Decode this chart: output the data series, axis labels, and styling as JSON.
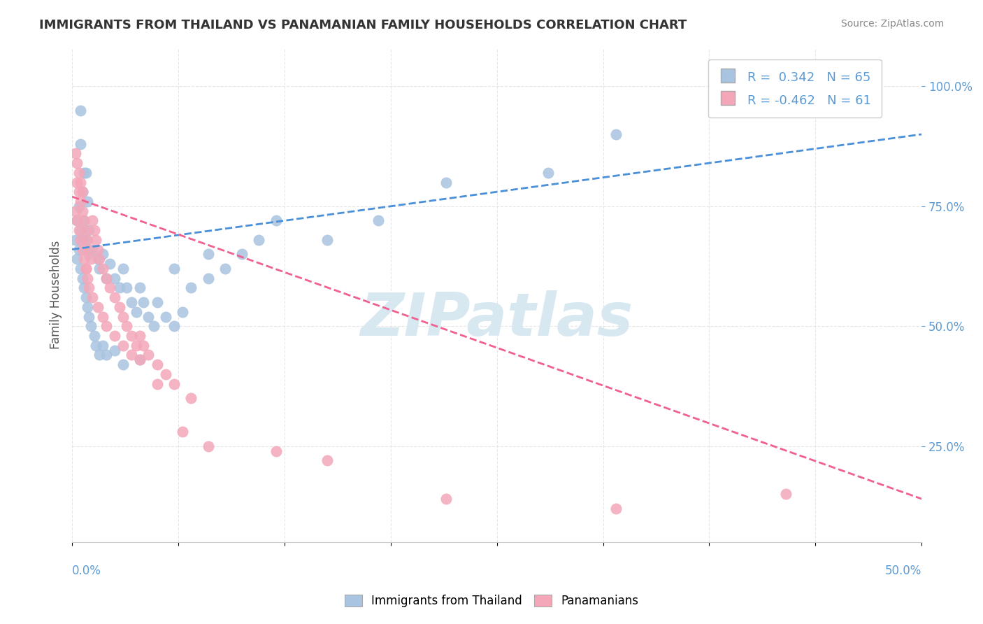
{
  "title": "IMMIGRANTS FROM THAILAND VS PANAMANIAN FAMILY HOUSEHOLDS CORRELATION CHART",
  "source_text": "Source: ZipAtlas.com",
  "ylabel": "Family Households",
  "y_ticks": [
    0.25,
    0.5,
    0.75,
    1.0
  ],
  "y_tick_labels": [
    "25.0%",
    "50.0%",
    "75.0%",
    "100.0%"
  ],
  "x_lim": [
    0.0,
    0.5
  ],
  "y_lim": [
    0.05,
    1.08
  ],
  "legend_r1": "R =  0.342   N = 65",
  "legend_r2": "R = -0.462   N = 61",
  "blue_color": "#a8c4e0",
  "pink_color": "#f4a7b9",
  "blue_line_color": "#4a90d9",
  "pink_line_color": "#f06090",
  "grid_color": "#e0e0e0",
  "title_color": "#333333",
  "axis_label_color": "#5b9bd5",
  "watermark_color": "#d8e8f0",
  "background_color": "#ffffff",
  "blue_scatter_x": [
    0.005,
    0.005,
    0.007,
    0.006,
    0.008,
    0.009,
    0.003,
    0.004,
    0.005,
    0.006,
    0.007,
    0.008,
    0.01,
    0.01,
    0.012,
    0.015,
    0.016,
    0.018,
    0.02,
    0.022,
    0.025,
    0.028,
    0.03,
    0.032,
    0.035,
    0.038,
    0.04,
    0.042,
    0.045,
    0.048,
    0.05,
    0.055,
    0.06,
    0.065,
    0.07,
    0.08,
    0.09,
    0.1,
    0.11,
    0.12,
    0.002,
    0.003,
    0.004,
    0.005,
    0.006,
    0.007,
    0.008,
    0.009,
    0.01,
    0.011,
    0.013,
    0.014,
    0.016,
    0.018,
    0.02,
    0.025,
    0.03,
    0.04,
    0.06,
    0.08,
    0.15,
    0.18,
    0.22,
    0.28,
    0.32
  ],
  "blue_scatter_y": [
    0.95,
    0.88,
    0.82,
    0.78,
    0.82,
    0.76,
    0.72,
    0.75,
    0.7,
    0.68,
    0.72,
    0.68,
    0.65,
    0.7,
    0.66,
    0.64,
    0.62,
    0.65,
    0.6,
    0.63,
    0.6,
    0.58,
    0.62,
    0.58,
    0.55,
    0.53,
    0.58,
    0.55,
    0.52,
    0.5,
    0.55,
    0.52,
    0.5,
    0.53,
    0.58,
    0.6,
    0.62,
    0.65,
    0.68,
    0.72,
    0.68,
    0.64,
    0.66,
    0.62,
    0.6,
    0.58,
    0.56,
    0.54,
    0.52,
    0.5,
    0.48,
    0.46,
    0.44,
    0.46,
    0.44,
    0.45,
    0.42,
    0.43,
    0.62,
    0.65,
    0.68,
    0.72,
    0.8,
    0.82,
    0.9
  ],
  "pink_scatter_x": [
    0.003,
    0.004,
    0.005,
    0.006,
    0.007,
    0.008,
    0.009,
    0.01,
    0.011,
    0.012,
    0.013,
    0.014,
    0.015,
    0.016,
    0.018,
    0.02,
    0.022,
    0.025,
    0.028,
    0.03,
    0.032,
    0.035,
    0.038,
    0.04,
    0.042,
    0.045,
    0.05,
    0.055,
    0.06,
    0.07,
    0.002,
    0.003,
    0.004,
    0.005,
    0.006,
    0.007,
    0.008,
    0.009,
    0.01,
    0.012,
    0.015,
    0.018,
    0.02,
    0.025,
    0.03,
    0.035,
    0.04,
    0.05,
    0.065,
    0.08,
    0.12,
    0.15,
    0.22,
    0.32,
    0.42,
    0.002,
    0.003,
    0.004,
    0.005,
    0.006,
    0.008
  ],
  "pink_scatter_y": [
    0.8,
    0.78,
    0.76,
    0.74,
    0.72,
    0.7,
    0.68,
    0.66,
    0.64,
    0.72,
    0.7,
    0.68,
    0.66,
    0.64,
    0.62,
    0.6,
    0.58,
    0.56,
    0.54,
    0.52,
    0.5,
    0.48,
    0.46,
    0.48,
    0.46,
    0.44,
    0.42,
    0.4,
    0.38,
    0.35,
    0.74,
    0.72,
    0.7,
    0.68,
    0.66,
    0.64,
    0.62,
    0.6,
    0.58,
    0.56,
    0.54,
    0.52,
    0.5,
    0.48,
    0.46,
    0.44,
    0.43,
    0.38,
    0.28,
    0.25,
    0.24,
    0.22,
    0.14,
    0.12,
    0.15,
    0.86,
    0.84,
    0.82,
    0.8,
    0.78,
    0.62
  ],
  "blue_line_x": [
    0.0,
    0.5
  ],
  "blue_line_y": [
    0.66,
    0.9
  ],
  "pink_line_x": [
    0.0,
    0.5
  ],
  "pink_line_y": [
    0.77,
    0.14
  ]
}
